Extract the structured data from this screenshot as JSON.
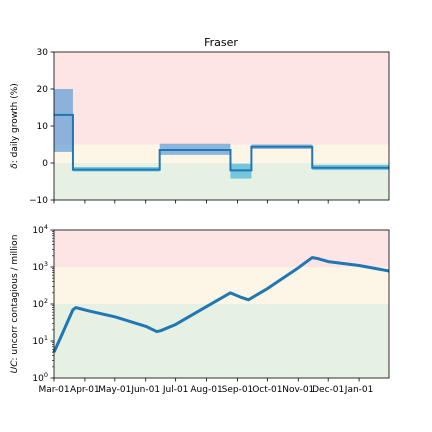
{
  "chart_data": [
    {
      "type": "line",
      "title": "Fraser",
      "ylabel_italic": "δ",
      "ylabel_rest": ": daily growth (%)",
      "ylim": [
        -10,
        30
      ],
      "yticks": [
        "−10",
        "0",
        "10",
        "20",
        "30"
      ],
      "ytick_values": [
        -10,
        0,
        10,
        20,
        30
      ],
      "x_range": [
        "2020-03-01",
        "2021-01-31"
      ],
      "bands": [
        {
          "from": 5,
          "to": 30,
          "color": "#fde5e5"
        },
        {
          "from": 0,
          "to": 5,
          "color": "#fdf5e6"
        },
        {
          "from": -10,
          "to": 0,
          "color": "#e6f0e3"
        }
      ],
      "segments": [
        {
          "start": "2020-03-01",
          "end": "2020-03-20",
          "value": 13,
          "lower": 3,
          "upper": 20
        },
        {
          "start": "2020-03-20",
          "end": "2020-06-15",
          "value": -1.8,
          "lower": -2.3,
          "upper": -1.1
        },
        {
          "start": "2020-06-15",
          "end": "2020-08-25",
          "value": 3.5,
          "lower": 2.2,
          "upper": 5.2
        },
        {
          "start": "2020-08-25",
          "end": "2020-09-15",
          "value": -2,
          "lower": -4.2,
          "upper": -0.2
        },
        {
          "start": "2020-09-15",
          "end": "2020-11-15",
          "value": 4.4,
          "lower": 3.8,
          "upper": 5.0
        },
        {
          "start": "2020-11-15",
          "end": "2021-01-31",
          "value": -1.3,
          "lower": -1.9,
          "upper": -0.5
        }
      ],
      "line_color": "#1f77b4",
      "ci_colors": [
        "#5b9bd5",
        "#45b3d9"
      ]
    },
    {
      "type": "line",
      "scale": "log",
      "ylabel_italic": "UC",
      "ylabel_rest": ": uncorr contagious / million",
      "ylim": [
        1,
        10000
      ],
      "ytick_values": [
        1,
        10,
        100,
        1000,
        10000
      ],
      "yticks_exponents": [
        "0",
        "1",
        "2",
        "3",
        "4"
      ],
      "ytick_base": "10",
      "x_range": [
        "2020-03-01",
        "2021-01-31"
      ],
      "bands": [
        {
          "from": 1000,
          "to": 10000,
          "color": "#fde5e5"
        },
        {
          "from": 100,
          "to": 1000,
          "color": "#fdf5e6"
        },
        {
          "from": 1,
          "to": 100,
          "color": "#e6f0e3"
        }
      ],
      "series": [
        {
          "dates": [
            "2020-03-01",
            "2020-03-08",
            "2020-03-15",
            "2020-03-20",
            "2020-03-23",
            "2020-03-27",
            "2020-04-05",
            "2020-05-01",
            "2020-06-01",
            "2020-06-12",
            "2020-06-16",
            "2020-07-01",
            "2020-08-01",
            "2020-08-25",
            "2020-09-05",
            "2020-09-12",
            "2020-09-16",
            "2020-10-01",
            "2020-11-01",
            "2020-11-15",
            "2020-11-20",
            "2020-12-01",
            "2021-01-01",
            "2021-01-31"
          ],
          "values": [
            5,
            13,
            35,
            70,
            80,
            75,
            65,
            45,
            25,
            18,
            19,
            28,
            85,
            200,
            150,
            130,
            150,
            260,
            950,
            1800,
            1700,
            1400,
            1100,
            780
          ]
        }
      ],
      "line_color": "#1f77b4"
    }
  ],
  "x_ticks": [
    {
      "date": "2020-03-01",
      "label": "Mar-01"
    },
    {
      "date": "2020-04-01",
      "label": "Apr-01"
    },
    {
      "date": "2020-05-01",
      "label": "May-01"
    },
    {
      "date": "2020-06-01",
      "label": "Jun-01"
    },
    {
      "date": "2020-07-01",
      "label": "Jul-01"
    },
    {
      "date": "2020-08-01",
      "label": "Aug-01"
    },
    {
      "date": "2020-09-01",
      "label": "Sep-01"
    },
    {
      "date": "2020-10-01",
      "label": "Oct-01"
    },
    {
      "date": "2020-11-01",
      "label": "Nov-01"
    },
    {
      "date": "2020-12-01",
      "label": "Dec-01"
    },
    {
      "date": "2021-01-01",
      "label": "Jan-01"
    }
  ]
}
